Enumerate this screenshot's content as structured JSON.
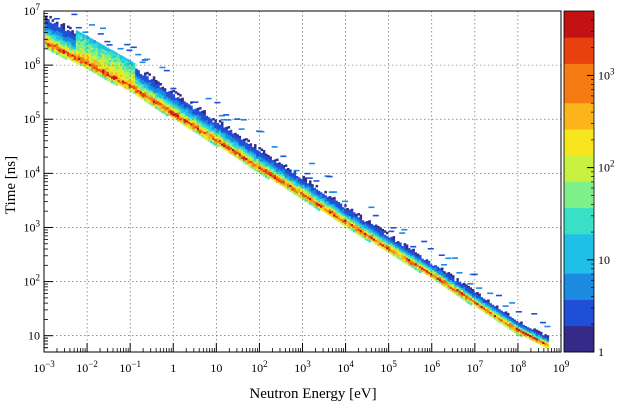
{
  "chart_data": {
    "type": "heatmap",
    "title": "",
    "xlabel": "Neutron Energy [eV]",
    "ylabel": "Time [ns]",
    "x_scale": "log",
    "y_scale": "log",
    "xlim": [
      0.001,
      1000000000
    ],
    "ylim": [
      5,
      10000000
    ],
    "grid": true,
    "x_ticks": [
      {
        "value": 0.001,
        "base": "10",
        "exp": "−3"
      },
      {
        "value": 0.01,
        "base": "10",
        "exp": "−2"
      },
      {
        "value": 0.1,
        "base": "10",
        "exp": "−1"
      },
      {
        "value": 1,
        "base": "1",
        "exp": ""
      },
      {
        "value": 10,
        "base": "10",
        "exp": ""
      },
      {
        "value": 100,
        "base": "10",
        "exp": "2"
      },
      {
        "value": 1000,
        "base": "10",
        "exp": "3"
      },
      {
        "value": 10000,
        "base": "10",
        "exp": "4"
      },
      {
        "value": 100000,
        "base": "10",
        "exp": "5"
      },
      {
        "value": 1000000,
        "base": "10",
        "exp": "6"
      },
      {
        "value": 10000000,
        "base": "10",
        "exp": "7"
      },
      {
        "value": 100000000,
        "base": "10",
        "exp": "8"
      },
      {
        "value": 1000000000,
        "base": "10",
        "exp": "9"
      }
    ],
    "y_ticks": [
      {
        "value": 10,
        "base": "10",
        "exp": ""
      },
      {
        "value": 100,
        "base": "10",
        "exp": "2"
      },
      {
        "value": 1000,
        "base": "10",
        "exp": "3"
      },
      {
        "value": 10000,
        "base": "10",
        "exp": "4"
      },
      {
        "value": 100000,
        "base": "10",
        "exp": "5"
      },
      {
        "value": 1000000,
        "base": "10",
        "exp": "6"
      },
      {
        "value": 10000000,
        "base": "10",
        "exp": "7"
      }
    ],
    "ridge": {
      "description": "time-of-flight band: time ∝ E^-0.5",
      "points": [
        {
          "energy": 0.001,
          "time": 2800000
        },
        {
          "energy": 0.01,
          "time": 1100000
        },
        {
          "energy": 0.1,
          "time": 420000
        },
        {
          "energy": 1,
          "time": 130000
        },
        {
          "energy": 10,
          "time": 42000
        },
        {
          "energy": 100,
          "time": 13000
        },
        {
          "energy": 1000,
          "time": 4200
        },
        {
          "energy": 10000,
          "time": 1300
        },
        {
          "energy": 100000,
          "time": 420
        },
        {
          "energy": 1000000,
          "time": 140
        },
        {
          "energy": 10000000,
          "time": 42
        },
        {
          "energy": 100000000,
          "time": 13
        },
        {
          "energy": 500000000,
          "time": 7
        }
      ]
    },
    "colorbar": {
      "scale": "log",
      "range": [
        1,
        5000
      ],
      "ticks": [
        {
          "value": 1,
          "base": "1",
          "exp": ""
        },
        {
          "value": 10,
          "base": "10",
          "exp": ""
        },
        {
          "value": 100,
          "base": "10",
          "exp": "2"
        },
        {
          "value": 1000,
          "base": "10",
          "exp": "3"
        }
      ],
      "palette": [
        "#352a87",
        "#1f4fd6",
        "#1a8be0",
        "#1fc0e8",
        "#39e0c7",
        "#7ef08a",
        "#c8f23f",
        "#f7e51e",
        "#fbb41a",
        "#f57a12",
        "#e8400f",
        "#c41212",
        "#8c0a0a"
      ]
    }
  }
}
